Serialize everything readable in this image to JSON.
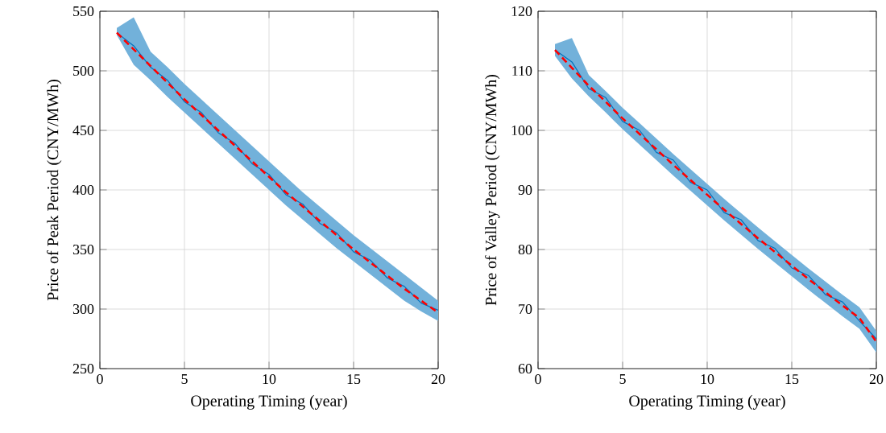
{
  "chart_data": [
    {
      "type": "line",
      "xlabel": "Operating Timing (year)",
      "ylabel": "Price of Peak Period (CNY/MWh)",
      "x": [
        1,
        2,
        3,
        4,
        5,
        6,
        7,
        8,
        9,
        10,
        11,
        12,
        13,
        14,
        15,
        16,
        17,
        18,
        19,
        20
      ],
      "xlim": [
        0,
        20
      ],
      "xticks": [
        0,
        5,
        10,
        15,
        20
      ],
      "ylim": [
        250,
        550
      ],
      "yticks": [
        250,
        300,
        350,
        400,
        450,
        500,
        550
      ],
      "grid": true,
      "series": [
        {
          "color": "#0072bd",
          "line_style": "solid",
          "values": [
            532,
            521,
            503,
            492,
            474,
            465,
            448,
            439,
            422,
            413,
            396,
            388,
            372,
            364,
            348,
            341,
            326,
            319,
            305,
            299
          ],
          "lower": [
            530,
            505,
            492,
            478,
            465,
            452,
            439,
            426,
            413,
            400,
            387,
            375,
            363,
            351,
            340,
            329,
            318,
            307,
            298,
            290
          ],
          "upper": [
            536,
            545,
            516,
            503,
            489,
            476,
            463,
            450,
            437,
            424,
            411,
            398,
            386,
            374,
            362,
            351,
            340,
            329,
            318,
            307
          ]
        },
        {
          "color": "#ff0000",
          "line_style": "dashed",
          "values": [
            532,
            518,
            504,
            490,
            476,
            463,
            450,
            437,
            424,
            411,
            398,
            386,
            374,
            362,
            350,
            339,
            328,
            317,
            307,
            297
          ]
        }
      ]
    },
    {
      "type": "line",
      "xlabel": "Operating Timing (year)",
      "ylabel": "Price of Valley Period (CNY/MWh)",
      "x": [
        1,
        2,
        3,
        4,
        5,
        6,
        7,
        8,
        9,
        10,
        11,
        12,
        13,
        14,
        15,
        16,
        17,
        18,
        19,
        20
      ],
      "xlim": [
        0,
        20
      ],
      "xticks": [
        0,
        5,
        10,
        15,
        20
      ],
      "ylim": [
        60,
        120
      ],
      "yticks": [
        60,
        70,
        80,
        90,
        100,
        110,
        120
      ],
      "grid": true,
      "series": [
        {
          "color": "#0072bd",
          "line_style": "solid",
          "values": [
            113.5,
            111.5,
            107,
            105.5,
            101.5,
            100,
            96.3,
            95,
            91.3,
            90,
            86.2,
            85,
            81.5,
            80.2,
            76.9,
            75.6,
            72.4,
            71.2,
            68,
            65
          ],
          "lower": [
            112.5,
            108.7,
            105.7,
            103,
            100.2,
            97.6,
            95,
            92.4,
            89.9,
            87.4,
            84.9,
            82.5,
            80.1,
            77.8,
            75.5,
            73.2,
            71,
            68.8,
            66.7,
            62.7
          ],
          "upper": [
            114.5,
            115.5,
            109.3,
            106.6,
            103.8,
            101.2,
            98.6,
            96,
            93.5,
            91,
            88.5,
            86.1,
            83.7,
            81.4,
            79.1,
            76.8,
            74.6,
            72.4,
            70.3,
            66.3
          ]
        },
        {
          "color": "#ff0000",
          "line_style": "dashed",
          "values": [
            113.5,
            110.5,
            107.5,
            104.8,
            102,
            99.4,
            96.8,
            94.2,
            91.7,
            89.2,
            86.7,
            84.3,
            81.9,
            79.6,
            77.3,
            75,
            72.8,
            70.6,
            68.5,
            64.5
          ]
        }
      ]
    }
  ]
}
